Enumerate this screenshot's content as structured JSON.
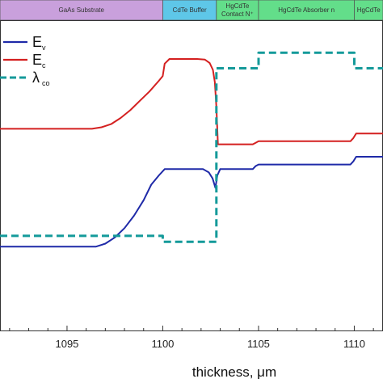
{
  "chart_data": {
    "type": "line",
    "xlabel": "thickness, μm",
    "xlim": [
      1091.5,
      1111.5
    ],
    "ylim": [
      0,
      1
    ],
    "x_ticks": [
      1095,
      1100,
      1105,
      1110
    ],
    "grid": false,
    "legend_position": "top-left",
    "regions": [
      {
        "label": "GaAs Substrate",
        "x_start": 1091.5,
        "x_end": 1100.0,
        "color": "#c9a0dc"
      },
      {
        "label": "CdTe Buffer",
        "x_start": 1100.0,
        "x_end": 1102.8,
        "color": "#5ec7e8"
      },
      {
        "label": "HgCdTe Contact N⁺",
        "x_start": 1102.8,
        "x_end": 1105.0,
        "color": "#63de8a"
      },
      {
        "label": "HgCdTe Absorber n",
        "x_start": 1105.0,
        "x_end": 1110.0,
        "color": "#63de8a"
      },
      {
        "label": "HgCdTe",
        "x_start": 1110.0,
        "x_end": 1111.5,
        "color": "#63de8a"
      }
    ],
    "series": [
      {
        "name": "E",
        "subscript": "v",
        "color": "#1f2aa8",
        "style": "solid",
        "x": [
          1091.5,
          1096.5,
          1097.0,
          1097.5,
          1098.0,
          1098.5,
          1099.0,
          1099.4,
          1099.8,
          1100.1,
          1100.4,
          1101.0,
          1101.7,
          1102.1,
          1102.4,
          1102.6,
          1102.75,
          1102.85,
          1103.0,
          1104.7,
          1104.85,
          1105.0,
          1109.8,
          1109.95,
          1110.1,
          1111.5
        ],
        "y": [
          0.27,
          0.27,
          0.28,
          0.3,
          0.33,
          0.37,
          0.42,
          0.47,
          0.5,
          0.52,
          0.52,
          0.52,
          0.52,
          0.52,
          0.51,
          0.49,
          0.46,
          0.5,
          0.52,
          0.52,
          0.53,
          0.535,
          0.535,
          0.545,
          0.56,
          0.56
        ]
      },
      {
        "name": "E",
        "subscript": "c",
        "color": "#d42020",
        "style": "solid",
        "x": [
          1091.5,
          1096.3,
          1096.8,
          1097.3,
          1097.8,
          1098.3,
          1098.8,
          1099.3,
          1099.8,
          1100.0,
          1100.1,
          1100.35,
          1101.8,
          1102.2,
          1102.45,
          1102.62,
          1102.72,
          1102.8,
          1102.88,
          1104.7,
          1104.85,
          1105.0,
          1109.8,
          1109.95,
          1110.1,
          1111.5
        ],
        "y": [
          0.65,
          0.65,
          0.655,
          0.665,
          0.685,
          0.71,
          0.74,
          0.77,
          0.805,
          0.82,
          0.86,
          0.875,
          0.875,
          0.873,
          0.862,
          0.84,
          0.8,
          0.72,
          0.6,
          0.6,
          0.605,
          0.61,
          0.61,
          0.62,
          0.635,
          0.635
        ]
      },
      {
        "name": "λ",
        "subscript": "co",
        "color": "#149a9a",
        "style": "dashed",
        "x": [
          1091.5,
          1100.0,
          1100.0,
          1102.8,
          1102.8,
          1105.0,
          1105.0,
          1110.0,
          1110.0,
          1111.5
        ],
        "y": [
          0.305,
          0.305,
          0.286,
          0.286,
          0.845,
          0.845,
          0.895,
          0.895,
          0.845,
          0.845
        ]
      }
    ]
  }
}
